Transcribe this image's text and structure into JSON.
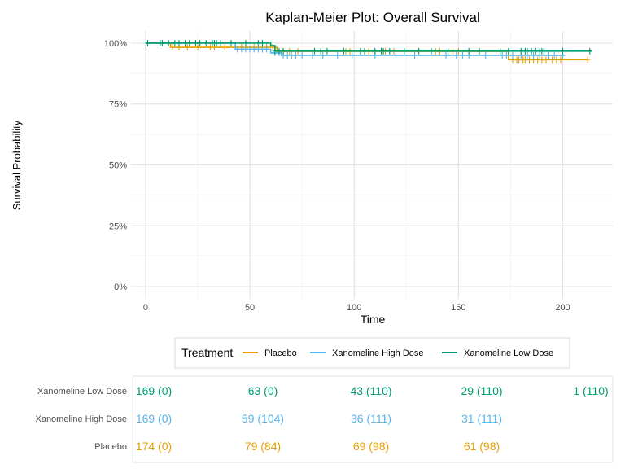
{
  "chart_data": {
    "type": "line",
    "subtype": "kaplan-meier-step",
    "title": "Kaplan-Meier Plot: Overall Survival",
    "xlabel": "Time",
    "ylabel": "Survival Probability",
    "xlim": [
      -7,
      224
    ],
    "ylim": [
      -0.05,
      1.05
    ],
    "x_ticks": [
      0,
      50,
      100,
      150,
      200
    ],
    "x_tick_labels": [
      "0",
      "50",
      "100",
      "150",
      "200"
    ],
    "y_ticks": [
      0,
      0.25,
      0.5,
      0.75,
      1.0
    ],
    "y_tick_labels": [
      "0%",
      "25%",
      "50%",
      "75%",
      "100%"
    ],
    "grid": true,
    "legend": {
      "title": "Treatment",
      "position": "bottom",
      "entries": [
        "Placebo",
        "Xanomeline High Dose",
        "Xanomeline Low Dose"
      ]
    },
    "series": [
      {
        "name": "Placebo",
        "color": "#E69F00",
        "steps": [
          [
            0,
            1.0
          ],
          [
            12,
            0.983
          ],
          [
            63,
            0.966
          ],
          [
            174,
            0.932
          ],
          [
            212,
            0.932
          ]
        ],
        "censored": [
          13,
          16,
          20,
          25,
          31,
          33,
          38,
          46,
          48,
          52,
          58,
          61,
          64,
          66,
          69,
          73,
          84,
          96,
          98,
          107,
          115,
          119,
          139,
          141,
          145,
          147,
          150,
          160,
          170,
          176,
          178,
          179,
          181,
          182,
          184,
          186,
          188,
          190,
          192,
          195,
          197,
          199,
          212
        ]
      },
      {
        "name": "Xanomeline High Dose",
        "color": "#56B4E9",
        "steps": [
          [
            0,
            1.0
          ],
          [
            43,
            0.975
          ],
          [
            60,
            0.96
          ],
          [
            65,
            0.95
          ],
          [
            201,
            0.95
          ]
        ],
        "censored": [
          44,
          46,
          48,
          50,
          52,
          54,
          56,
          58,
          62,
          64,
          66,
          68,
          70,
          72,
          75,
          80,
          85,
          92,
          99,
          110,
          120,
          129,
          144,
          149,
          152,
          155,
          163,
          171,
          173,
          176,
          180,
          183,
          186,
          189,
          193,
          196,
          200
        ]
      },
      {
        "name": "Xanomeline Low Dose",
        "color": "#009E73",
        "steps": [
          [
            0,
            1.0
          ],
          [
            60,
            0.99
          ],
          [
            62,
            0.967
          ],
          [
            214,
            0.967
          ]
        ],
        "censored": [
          1,
          7,
          8,
          11,
          14,
          16,
          19,
          21,
          24,
          26,
          29,
          32,
          33,
          34,
          36,
          41,
          48,
          54,
          56,
          62,
          64,
          66,
          81,
          84,
          87,
          95,
          103,
          105,
          110,
          113,
          114,
          117,
          124,
          131,
          137,
          145,
          155,
          160,
          170,
          174,
          180,
          182,
          183,
          185,
          187,
          189,
          190,
          191,
          200,
          213
        ]
      }
    ],
    "risk_table": {
      "times": [
        0,
        50,
        100,
        150,
        200
      ],
      "rows": [
        {
          "name": "Xanomeline Low Dose",
          "color": "#009E73",
          "values": [
            "169 (0)",
            "63 (0)",
            "43 (110)",
            "29 (110)",
            "1 (110)"
          ]
        },
        {
          "name": "Xanomeline High Dose",
          "color": "#56B4E9",
          "values": [
            "169 (0)",
            "59 (104)",
            "36 (111)",
            "31 (111)",
            ""
          ]
        },
        {
          "name": "Placebo",
          "color": "#E69F00",
          "values": [
            "174 (0)",
            "79 (84)",
            "69 (98)",
            "61 (98)",
            ""
          ]
        }
      ]
    }
  }
}
